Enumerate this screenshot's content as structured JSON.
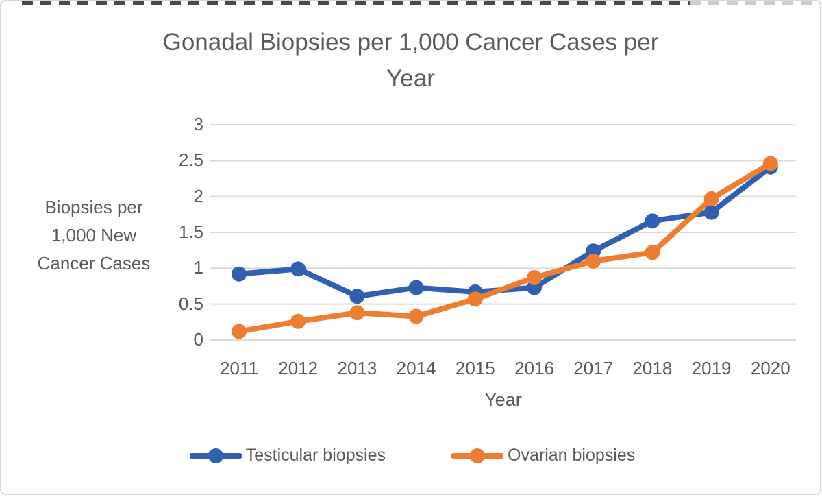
{
  "chart_data": {
    "type": "line",
    "title": "Gonadal Biopsies per 1,000 Cancer Cases per Year",
    "xlabel": "Year",
    "ylabel_lines": [
      "Biopsies per",
      "1,000 New",
      "Cancer Cases"
    ],
    "x": [
      2011,
      2012,
      2013,
      2014,
      2015,
      2016,
      2017,
      2018,
      2019,
      2020
    ],
    "y_ticks": [
      "0",
      "0.5",
      "1",
      "1.5",
      "2",
      "2.5",
      "3"
    ],
    "y_tick_values": [
      0,
      0.5,
      1,
      1.5,
      2,
      2.5,
      3
    ],
    "ylim": [
      0,
      3
    ],
    "grid": true,
    "legend_position": "bottom",
    "text_color": "#595959",
    "gridline_color": "#d9d9d9",
    "series": [
      {
        "name": "Testicular biopsies",
        "color": "#3060B0",
        "values": [
          0.92,
          0.99,
          0.61,
          0.73,
          0.67,
          0.73,
          1.24,
          1.66,
          1.78,
          2.41
        ]
      },
      {
        "name": "Ovarian biopsies",
        "color": "#ED7D31",
        "values": [
          0.12,
          0.26,
          0.38,
          0.33,
          0.57,
          0.87,
          1.1,
          1.22,
          1.97,
          2.46
        ]
      }
    ]
  }
}
